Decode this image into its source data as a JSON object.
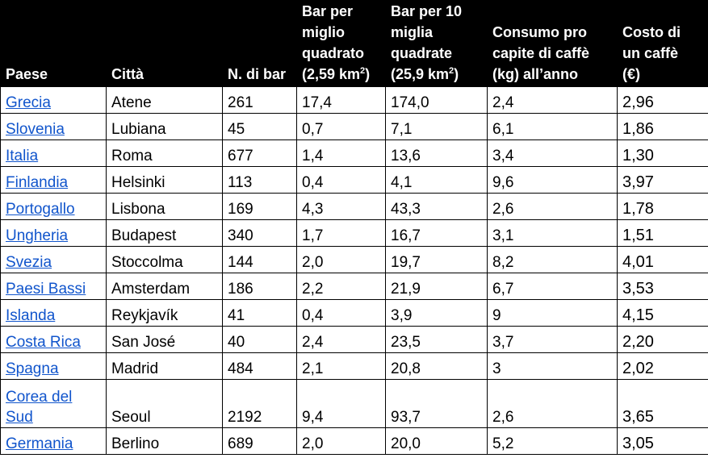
{
  "table": {
    "headers": {
      "country": "Paese",
      "city": "Città",
      "bars": "N. di bar",
      "bars_sq_mile": [
        "Bar per",
        "miglio",
        "quadrato"
      ],
      "bars_sq_mile_unit": "(2,59 km",
      "bars_10_sq_miles": [
        "Bar per 10",
        "miglia",
        "quadrate"
      ],
      "bars_10_sq_miles_unit": "(25,9 km",
      "unit_sup": "2",
      "unit_close": ")",
      "consumption": [
        "Consumo pro",
        "capite di caffè",
        "(kg) all’anno"
      ],
      "cost": [
        "Costo di",
        "un caffè",
        "(€)"
      ]
    },
    "rows": [
      {
        "country": "Grecia",
        "city": "Atene",
        "bars": "261",
        "per_sq_mile": "17,4",
        "per_10_sq_miles": "174,0",
        "consumption": "2,4",
        "cost": "2,96"
      },
      {
        "country": "Slovenia",
        "city": "Lubiana",
        "bars": "45",
        "per_sq_mile": "0,7",
        "per_10_sq_miles": "7,1",
        "consumption": "6,1",
        "cost": "1,86"
      },
      {
        "country": "Italia",
        "city": "Roma",
        "bars": "677",
        "per_sq_mile": "1,4",
        "per_10_sq_miles": "13,6",
        "consumption": "3,4",
        "cost": "1,30"
      },
      {
        "country": "Finlandia",
        "city": "Helsinki",
        "bars": "113",
        "per_sq_mile": "0,4",
        "per_10_sq_miles": "4,1",
        "consumption": "9,6",
        "cost": "3,97"
      },
      {
        "country": "Portogallo",
        "city": "Lisbona",
        "bars": "169",
        "per_sq_mile": "4,3",
        "per_10_sq_miles": "43,3",
        "consumption": "2,6",
        "cost": "1,78"
      },
      {
        "country": "Ungheria",
        "city": "Budapest",
        "bars": "340",
        "per_sq_mile": "1,7",
        "per_10_sq_miles": "16,7",
        "consumption": "3,1",
        "cost": "1,51"
      },
      {
        "country": "Svezia",
        "city": "Stoccolma",
        "bars": "144",
        "per_sq_mile": "2,0",
        "per_10_sq_miles": "19,7",
        "consumption": "8,2",
        "cost": "4,01"
      },
      {
        "country": "Paesi Bassi",
        "city": "Amsterdam",
        "bars": "186",
        "per_sq_mile": "2,2",
        "per_10_sq_miles": "21,9",
        "consumption": "6,7",
        "cost": "3,53"
      },
      {
        "country": "Islanda",
        "city": "Reykjavík",
        "bars": "41",
        "per_sq_mile": "0,4",
        "per_10_sq_miles": "3,9",
        "consumption": "9",
        "cost": "4,15"
      },
      {
        "country": "Costa Rica",
        "city": "San José",
        "bars": "40",
        "per_sq_mile": "2,4",
        "per_10_sq_miles": "23,5",
        "consumption": "3,7",
        "cost": "2,20"
      },
      {
        "country": "Spagna",
        "city": "Madrid",
        "bars": "484",
        "per_sq_mile": "2,1",
        "per_10_sq_miles": "20,8",
        "consumption": "3",
        "cost": "2,02"
      },
      {
        "country_lines": [
          "Corea del",
          "Sud"
        ],
        "city": "Seoul",
        "bars": "2192",
        "per_sq_mile": "9,4",
        "per_10_sq_miles": "93,7",
        "consumption": "2,6",
        "cost": "3,65"
      },
      {
        "country": "Germania",
        "city": "Berlino",
        "bars": "689",
        "per_sq_mile": "2,0",
        "per_10_sq_miles": "20,0",
        "consumption": "5,2",
        "cost": "3,05"
      }
    ]
  },
  "colors": {
    "header_bg": "#000000",
    "header_text": "#ffffff",
    "link": "#1155cc"
  }
}
